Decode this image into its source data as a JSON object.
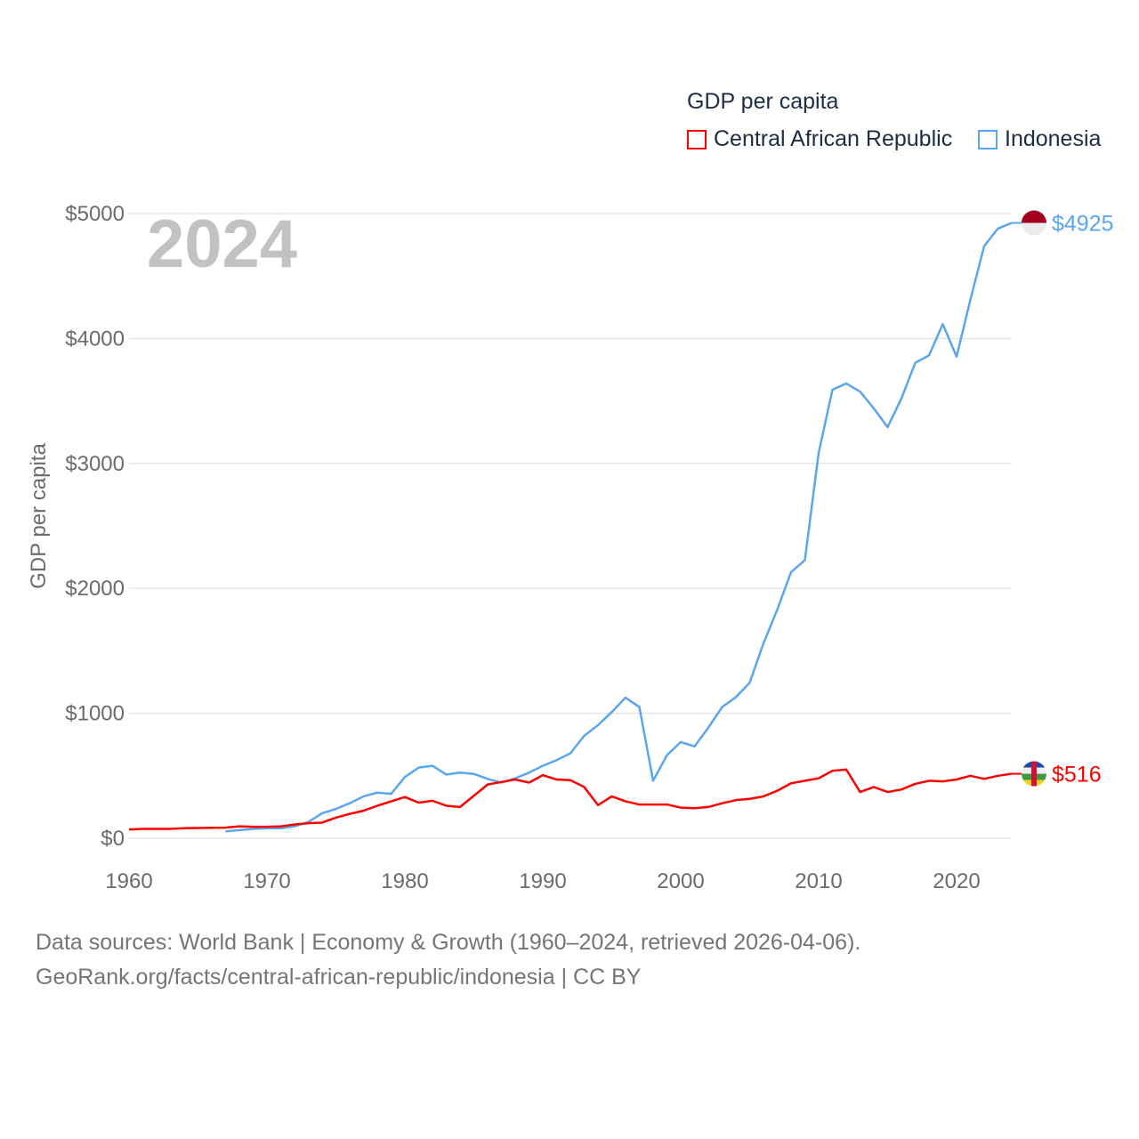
{
  "chart_data": {
    "type": "line",
    "title": "GDP per capita",
    "year_label": "2024",
    "ylabel": "GDP per capita",
    "xlabel": "",
    "ylim": [
      0,
      5000
    ],
    "xlim": [
      1960,
      2024
    ],
    "yticks": [
      0,
      1000,
      2000,
      3000,
      4000,
      5000
    ],
    "ytick_labels": [
      "$0",
      "$1000",
      "$2000",
      "$3000",
      "$4000",
      "$5000"
    ],
    "xticks": [
      1960,
      1970,
      1980,
      1990,
      2000,
      2010,
      2020
    ],
    "xtick_labels": [
      "1960",
      "1970",
      "1980",
      "1990",
      "2000",
      "2010",
      "2020"
    ],
    "grid": true,
    "legend_position": "top-right",
    "series": [
      {
        "name": "Central African Republic",
        "color": "#ff0000",
        "end_label": "$516",
        "start_year": 1960,
        "values": [
          70,
          75,
          75,
          75,
          80,
          82,
          84,
          85,
          95,
          92,
          92,
          95,
          110,
          120,
          125,
          165,
          195,
          220,
          260,
          295,
          330,
          285,
          300,
          260,
          250,
          340,
          430,
          450,
          470,
          445,
          505,
          470,
          465,
          410,
          265,
          335,
          295,
          270,
          270,
          270,
          245,
          240,
          250,
          280,
          305,
          315,
          335,
          380,
          440,
          460,
          480,
          540,
          550,
          370,
          410,
          370,
          390,
          435,
          460,
          455,
          470,
          500,
          475,
          500,
          516
        ]
      },
      {
        "name": "Indonesia",
        "color": "#5aa6ee",
        "end_label": "$4925",
        "start_year": 1967,
        "values": [
          55,
          65,
          75,
          80,
          80,
          95,
          130,
          200,
          235,
          280,
          335,
          365,
          355,
          490,
          565,
          580,
          510,
          525,
          515,
          475,
          445,
          480,
          525,
          580,
          625,
          680,
          820,
          905,
          1010,
          1125,
          1050,
          460,
          665,
          770,
          735,
          885,
          1050,
          1130,
          1245,
          1560,
          1830,
          2130,
          2225,
          3085,
          3590,
          3640,
          3575,
          3440,
          3290,
          3520,
          3805,
          3865,
          4115,
          3855,
          4310,
          4740,
          4880,
          4925
        ]
      }
    ]
  },
  "footer": {
    "line1": "Data sources: World Bank | Economy & Growth (1960–2024, retrieved 2026-04-06).",
    "line2": "GeoRank.org/facts/central-african-republic/indonesia | CC BY"
  }
}
